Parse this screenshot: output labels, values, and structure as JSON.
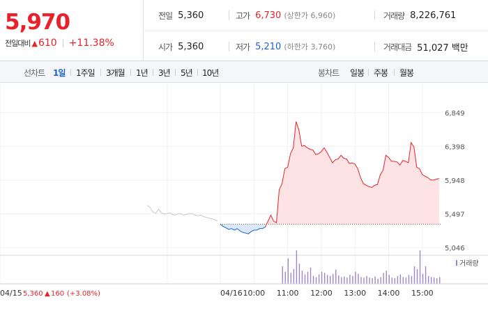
{
  "quote": {
    "price": "5,970",
    "change_label": "전일대비",
    "change_icon": "up-triangle-icon",
    "change_value": "610",
    "change_percent": "+11.38%",
    "prev_close_label": "전일",
    "prev_close": "5,360",
    "high_label": "고가",
    "high": "6,730",
    "upper_limit_label": "(상한가 6,960)",
    "volume_label": "거래량",
    "volume": "8,226,761",
    "open_label": "시가",
    "open": "5,360",
    "low_label": "저가",
    "low": "5,210",
    "lower_limit_label": "(하한가 3,760)",
    "trade_value_label": "거래대금",
    "trade_value": "51,027 백만"
  },
  "tabs": {
    "line_label": "선차트",
    "line_periods": [
      "1일",
      "1주일",
      "3개월",
      "1년",
      "3년",
      "5년",
      "10년"
    ],
    "active_period": "1일",
    "candle_label": "봉차트",
    "candle_periods": [
      "일봉",
      "주봉",
      "월봉"
    ]
  },
  "colors": {
    "up": "#e8222b",
    "down": "#1a62d6",
    "fill_up": "#fde3e3",
    "fill_down": "#dbe8fa",
    "prev_day_line": "#c8c8c8",
    "volume_bar": "#9f85c8"
  },
  "chart_data": {
    "type": "line",
    "title": "",
    "baseline": 5360,
    "ylim": [
      5046,
      6849
    ],
    "yticks": [
      6849,
      6398,
      5948,
      5497,
      5046
    ],
    "ytick_labels": [
      "6,849",
      "6,398",
      "5,948",
      "5,497",
      "5,046"
    ],
    "time_ticks": [
      "04/16",
      "10:00",
      "11:00",
      "12:00",
      "13:00",
      "14:00",
      "15:00"
    ],
    "time_tick_minutes": [
      0,
      60,
      120,
      180,
      240,
      300,
      360
    ],
    "prev_day_label": "04/15",
    "prev_day_close": "5,360",
    "prev_day_change_icon": "up-triangle-icon",
    "prev_day_change": "160",
    "prev_day_change_pct": "(+3.08%)",
    "volume_legend": "거래량",
    "series": [
      {
        "x_minutes": [
          -130,
          -125,
          -120,
          -115,
          -110,
          -105,
          -100,
          -95,
          -90,
          -85,
          -80,
          -75,
          -70,
          -65,
          -60,
          -55,
          -50,
          -45,
          -40,
          -35,
          -30,
          -25,
          -20,
          -15,
          -10,
          -5
        ],
        "values": [
          5610,
          5580,
          5520,
          5505,
          5560,
          5510,
          5495,
          5500,
          5510,
          5490,
          5480,
          5500,
          5495,
          5480,
          5490,
          5500,
          5500,
          5480,
          5470,
          5480,
          5460,
          5450,
          5440,
          5430,
          5420,
          5400
        ]
      },
      {
        "x_minutes": [
          0,
          5,
          10,
          15,
          20,
          25,
          30,
          35,
          40,
          45,
          50,
          55,
          60,
          65,
          70,
          75,
          80,
          85,
          90,
          95,
          100,
          105,
          110,
          115,
          120,
          125,
          130,
          135,
          140,
          145,
          150,
          155,
          160,
          165,
          170,
          175,
          180,
          185,
          190,
          195,
          200,
          205,
          210,
          215,
          220,
          225,
          230,
          235,
          240,
          245,
          250,
          255,
          260,
          265,
          270,
          275,
          280,
          285,
          290,
          295,
          300,
          305,
          310,
          315,
          320,
          325,
          330,
          335,
          340,
          345,
          350,
          355,
          360,
          365,
          370,
          375,
          380,
          385,
          390
        ],
        "values": [
          5360,
          5330,
          5310,
          5290,
          5300,
          5280,
          5300,
          5270,
          5250,
          5240,
          5230,
          5260,
          5280,
          5280,
          5300,
          5300,
          5320,
          5400,
          5480,
          5400,
          5380,
          5820,
          5900,
          6100,
          6120,
          6300,
          6380,
          6730,
          6620,
          6400,
          6410,
          6380,
          6360,
          6350,
          6290,
          6300,
          6330,
          6380,
          6320,
          6250,
          6180,
          6220,
          6230,
          6280,
          6240,
          6230,
          6170,
          6180,
          6160,
          6100,
          5980,
          5900,
          5880,
          5860,
          5850,
          5880,
          5890,
          6020,
          6080,
          6280,
          6250,
          6200,
          6200,
          6190,
          6150,
          6210,
          6200,
          6180,
          6450,
          6390,
          6120,
          6100,
          6020,
          6000,
          5980,
          5950,
          5950,
          5960,
          5970
        ]
      }
    ],
    "volume": {
      "x_minutes": [
        110,
        115,
        120,
        125,
        130,
        135,
        140,
        145,
        150,
        155,
        160,
        165,
        170,
        175,
        180,
        185,
        190,
        195,
        200,
        205,
        210,
        215,
        220,
        225,
        230,
        235,
        240,
        245,
        250,
        255,
        260,
        265,
        270,
        275,
        280,
        285,
        290,
        295,
        300,
        305,
        310,
        315,
        320,
        325,
        330,
        335,
        340,
        345,
        350,
        355,
        360,
        365,
        370,
        375,
        380,
        385,
        390
      ],
      "values": [
        30,
        20,
        45,
        18,
        25,
        60,
        35,
        22,
        15,
        20,
        28,
        12,
        10,
        15,
        20,
        18,
        14,
        12,
        16,
        24,
        13,
        10,
        11,
        9,
        14,
        12,
        20,
        16,
        10,
        9,
        12,
        9,
        8,
        11,
        7,
        10,
        18,
        22,
        14,
        9,
        8,
        12,
        15,
        10,
        9,
        14,
        12,
        30,
        25,
        60,
        16,
        30,
        12,
        10,
        9,
        8,
        10
      ]
    }
  }
}
